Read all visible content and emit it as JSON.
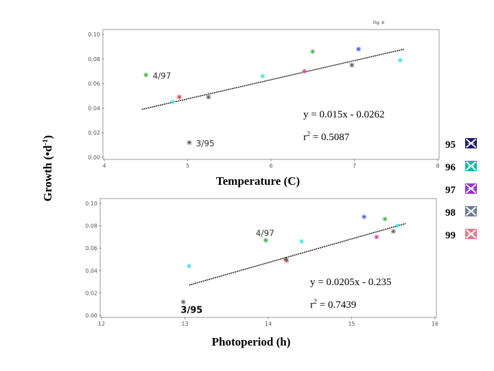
{
  "figure_label": "Fig. 6",
  "ylabel_main": "Growth (•d",
  "ylabel_sup": "-1",
  "ylabel_tail": ")",
  "legend": [
    {
      "label": "95",
      "color": "#1a1a6e"
    },
    {
      "label": "96",
      "color": "#20b2aa"
    },
    {
      "label": "97",
      "color": "#9932cc"
    },
    {
      "label": "98",
      "color": "#6a7a99"
    },
    {
      "label": "99",
      "color": "#e07a8a"
    }
  ],
  "chart_data": [
    {
      "type": "scatter",
      "xlabel": "Temperature (C)",
      "xlim": [
        4,
        8
      ],
      "ylim": [
        0,
        0.1
      ],
      "xticks": [
        "4",
        "5",
        "6",
        "7",
        "8"
      ],
      "yticks": [
        "0.00",
        "0.02",
        "0.04",
        "0.06",
        "0.08",
        "0.10"
      ],
      "points": [
        {
          "x": 4.5,
          "y": 0.067,
          "color": "#3cb043"
        },
        {
          "x": 4.9,
          "y": 0.049,
          "color": "#e83c3c"
        },
        {
          "x": 4.82,
          "y": 0.045,
          "color": "#40e0e0"
        },
        {
          "x": 5.02,
          "y": 0.012,
          "color": "#606060"
        },
        {
          "x": 5.25,
          "y": 0.049,
          "color": "#606060"
        },
        {
          "x": 5.9,
          "y": 0.066,
          "color": "#40e0e0"
        },
        {
          "x": 6.4,
          "y": 0.07,
          "color": "#e0409a"
        },
        {
          "x": 6.5,
          "y": 0.086,
          "color": "#3cb043"
        },
        {
          "x": 6.97,
          "y": 0.075,
          "color": "#606060"
        },
        {
          "x": 7.05,
          "y": 0.088,
          "color": "#4060e0"
        },
        {
          "x": 7.55,
          "y": 0.079,
          "color": "#40e0e0"
        }
      ],
      "fit": {
        "x": [
          4.45,
          7.6
        ],
        "y": [
          0.039,
          0.088
        ]
      },
      "equation": "y = 0.015x - 0.0262",
      "r2_prefix": "r",
      "r2_sup": "2",
      "r2_value": " = 0.5087",
      "annotations": [
        {
          "text": "4/97",
          "x": 4.58,
          "y": 0.064
        },
        {
          "text": "3/95",
          "x": 5.1,
          "y": 0.009
        }
      ]
    },
    {
      "type": "scatter",
      "xlabel": "Photoperiod (h)",
      "xlim": [
        12,
        16
      ],
      "ylim": [
        0,
        0.1
      ],
      "xticks": [
        "12",
        "13",
        "14",
        "15",
        "16"
      ],
      "yticks": [
        "0.00",
        "0.02",
        "0.04",
        "0.06",
        "0.08",
        "0.10"
      ],
      "points": [
        {
          "x": 12.98,
          "y": 0.012,
          "color": "#606060"
        },
        {
          "x": 13.05,
          "y": 0.044,
          "color": "#40e0e0"
        },
        {
          "x": 13.97,
          "y": 0.067,
          "color": "#3cb043"
        },
        {
          "x": 14.22,
          "y": 0.049,
          "color": "#e83c3c"
        },
        {
          "x": 14.21,
          "y": 0.05,
          "color": "#606060"
        },
        {
          "x": 14.4,
          "y": 0.066,
          "color": "#40e0e0"
        },
        {
          "x": 15.15,
          "y": 0.088,
          "color": "#4060e0"
        },
        {
          "x": 15.3,
          "y": 0.07,
          "color": "#e0409a"
        },
        {
          "x": 15.4,
          "y": 0.086,
          "color": "#3cb043"
        },
        {
          "x": 15.5,
          "y": 0.075,
          "color": "#606060"
        },
        {
          "x": 15.55,
          "y": 0.08,
          "color": "#40e0e0"
        }
      ],
      "fit": {
        "x": [
          13.05,
          15.65
        ],
        "y": [
          0.027,
          0.082
        ]
      },
      "equation": "y = 0.0205x - 0.235",
      "r2_prefix": "r",
      "r2_sup": "2",
      "r2_value": " = 0.7439",
      "annotations": [
        {
          "text": "4/97",
          "x": 13.85,
          "y": 0.071,
          "bold": false
        },
        {
          "text": "3/95",
          "x": 12.95,
          "y": 0.002,
          "bold": true
        }
      ]
    }
  ]
}
